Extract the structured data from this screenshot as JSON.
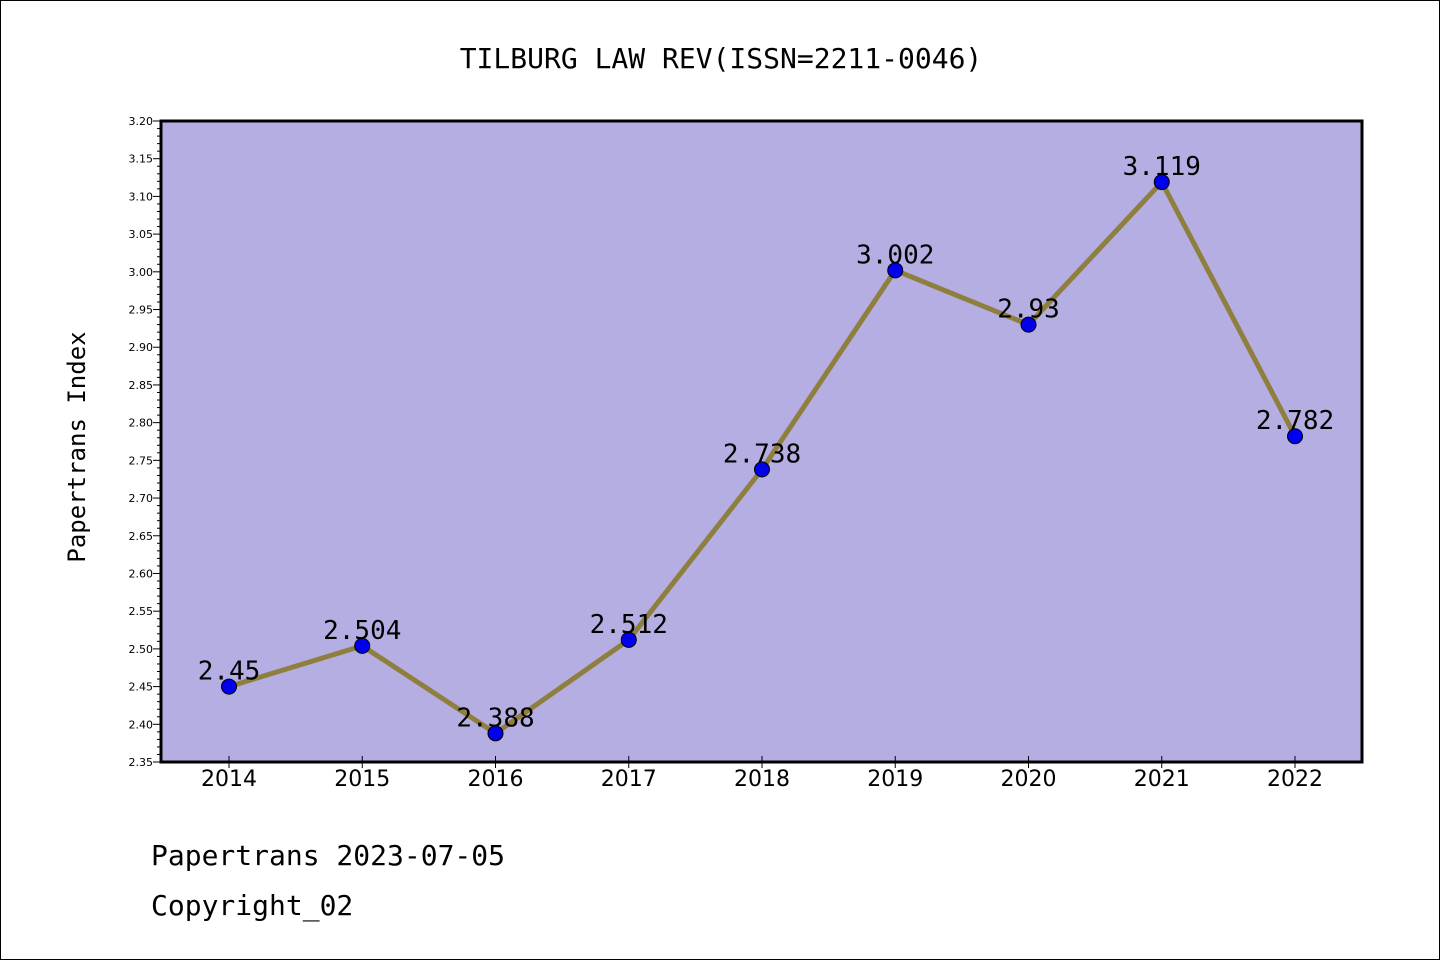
{
  "chart_data": {
    "type": "line",
    "title": "TILBURG LAW REV(ISSN=2211-0046)",
    "ylabel": "Papertrans Index",
    "xlabel": "",
    "categories": [
      "2014",
      "2015",
      "2016",
      "2017",
      "2018",
      "2019",
      "2020",
      "2021",
      "2022"
    ],
    "values": [
      2.45,
      2.504,
      2.388,
      2.512,
      2.738,
      3.002,
      2.93,
      3.119,
      2.782
    ],
    "data_labels": [
      "2.45",
      "2.504",
      "2.388",
      "2.512",
      "2.738",
      "3.002",
      "2.93",
      "3.119",
      "2.782"
    ],
    "ylim": [
      2.35,
      3.2
    ],
    "yticks": [
      "2.35",
      "2.40",
      "2.45",
      "2.50",
      "2.55",
      "2.60",
      "2.65",
      "2.70",
      "2.75",
      "2.80",
      "2.85",
      "2.90",
      "2.95",
      "3.00",
      "3.05",
      "3.10",
      "3.15",
      "3.20"
    ],
    "grid": false,
    "colors": {
      "plot_background": "#b4aee2",
      "line": "#8f7f3e",
      "marker": "#0000ee"
    }
  },
  "footer": {
    "line1": "Papertrans 2023-07-05",
    "line2": "Copyright_02"
  }
}
